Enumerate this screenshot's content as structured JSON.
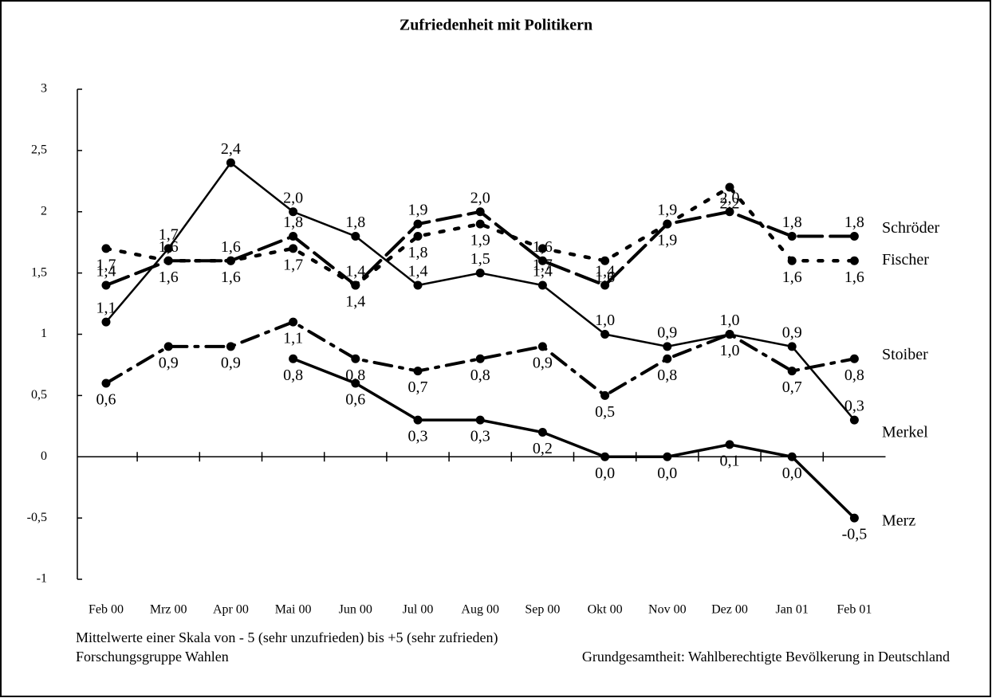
{
  "chart_data": {
    "type": "line",
    "title": "Zufriedenheit mit Politikern",
    "categories": [
      "Feb 00",
      "Mrz 00",
      "Apr 00",
      "Mai 00",
      "Jun 00",
      "Jul 00",
      "Aug 00",
      "Sep 00",
      "Okt 00",
      "Nov 00",
      "Dez 00",
      "Jan 01",
      "Feb 01"
    ],
    "series": [
      {
        "name": "Schröder",
        "color": "#000000",
        "style": "dashed",
        "values": [
          1.4,
          1.6,
          1.6,
          1.8,
          1.4,
          1.9,
          2.0,
          1.6,
          1.4,
          1.9,
          2.0,
          1.8,
          1.8
        ],
        "value_labels": [
          "1,4",
          "1,6",
          "1,6",
          "1,8",
          "1,4",
          "1,9",
          "2,0",
          "1,6",
          "1,4",
          "1,9",
          "2,0",
          "1,8",
          "1,8"
        ]
      },
      {
        "name": "Fischer",
        "color": "#000000",
        "style": "dotted",
        "values": [
          1.7,
          1.6,
          1.6,
          1.7,
          1.4,
          1.8,
          1.9,
          1.7,
          1.6,
          1.9,
          2.2,
          1.6,
          1.6
        ],
        "value_labels": [
          "1,7",
          "1,6",
          "1,6",
          "1,7",
          "1,4",
          "1,8",
          "1,9",
          "1,7",
          "1,6",
          "1,9",
          "2,2",
          "1,6",
          "1,6"
        ]
      },
      {
        "name": "Stoiber",
        "color": "#000000",
        "style": "dashdot",
        "values": [
          0.6,
          0.9,
          0.9,
          1.1,
          0.8,
          0.7,
          0.8,
          0.9,
          0.5,
          0.8,
          1.0,
          0.7,
          0.8
        ],
        "value_labels": [
          "0,6",
          "0,9",
          "0,9",
          "1,1",
          "0,8",
          "0,7",
          "0,8",
          "0,9",
          "0,5",
          "0,8",
          "1,0",
          "0,7",
          "0,8"
        ]
      },
      {
        "name": "Merkel",
        "color": "#000000",
        "style": "solid",
        "values": [
          1.1,
          1.7,
          2.4,
          2.0,
          1.8,
          1.4,
          1.5,
          1.4,
          1.0,
          0.9,
          1.0,
          0.9,
          0.3
        ],
        "value_labels": [
          "1,1",
          "1,7",
          "2,4",
          "2,0",
          "1,8",
          "1,4",
          "1,5",
          "1,4",
          "1,0",
          "0,9",
          "1,0",
          "0,9",
          "0,3"
        ]
      },
      {
        "name": "Merz",
        "color": "#000000",
        "style": "solid",
        "values": [
          null,
          null,
          null,
          0.8,
          0.6,
          0.3,
          0.3,
          0.2,
          0.0,
          0.0,
          0.1,
          0.0,
          -0.5
        ],
        "value_labels": [
          null,
          null,
          null,
          "0,8",
          "0,6",
          "0,3",
          "0,3",
          "0,2",
          "0,0",
          "0,0",
          "0,1",
          "0,0",
          "-0,5"
        ]
      }
    ],
    "ylim": [
      -1,
      3
    ],
    "yticks": [
      -1,
      {
        "value": -0.5,
        "label": "-0,5"
      },
      0,
      {
        "value": 0.5,
        "label": "0,5"
      },
      1,
      {
        "value": 1.5,
        "label": "1,5"
      },
      2,
      {
        "value": 2.5,
        "label": "2,5"
      },
      3
    ],
    "note": "Mittelwerte einer Skala von - 5 (sehr unzufrieden) bis +5 (sehr zufrieden)",
    "source": "Forschungsgruppe Wahlen",
    "population": "Grundgesamtheit: Wahlberechtigte Bevölkerung in Deutschland"
  }
}
